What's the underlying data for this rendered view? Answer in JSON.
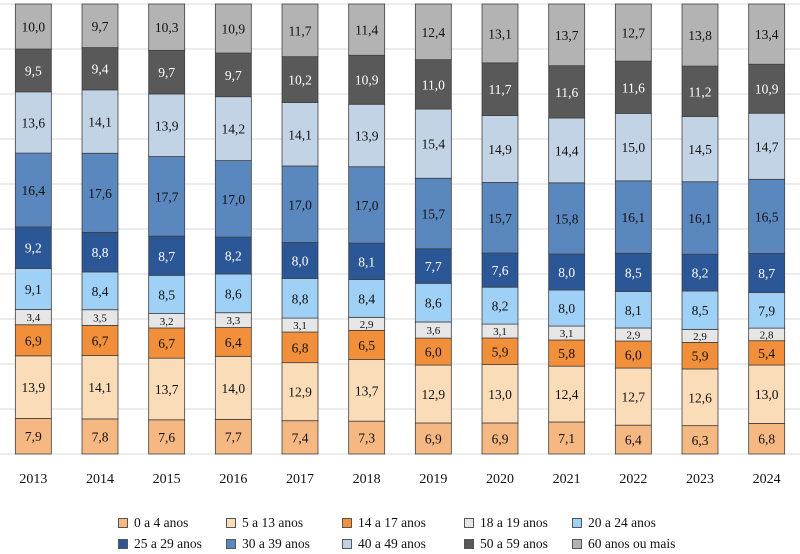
{
  "chart_data": {
    "type": "bar",
    "stacked": true,
    "categories": [
      "2013",
      "2014",
      "2015",
      "2016",
      "2017",
      "2018",
      "2019",
      "2020",
      "2021",
      "2022",
      "2023",
      "2024"
    ],
    "ylim": [
      0,
      100
    ],
    "grid": true,
    "legend_position": "bottom",
    "series": [
      {
        "name": "0 a 4 anos",
        "color": "#f6b883",
        "values": [
          7.9,
          7.8,
          7.6,
          7.7,
          7.4,
          7.3,
          6.9,
          6.9,
          7.1,
          6.4,
          6.3,
          6.8
        ],
        "labels": [
          "7,9",
          "7,8",
          "7,6",
          "7,7",
          "7,4",
          "7,3",
          "6,9",
          "6,9",
          "7,1",
          "6,4",
          "6,3",
          "6,8"
        ]
      },
      {
        "name": "5 a 13 anos",
        "color": "#fbdcb8",
        "values": [
          13.9,
          14.1,
          13.7,
          14.0,
          12.9,
          13.7,
          12.9,
          13.0,
          12.4,
          12.7,
          12.6,
          13.0
        ],
        "labels": [
          "13,9",
          "14,1",
          "13,7",
          "14,0",
          "12,9",
          "13,7",
          "12,9",
          "13,0",
          "12,4",
          "12,7",
          "12,6",
          "13,0"
        ]
      },
      {
        "name": "14 a 17 anos",
        "color": "#f28f3b",
        "values": [
          6.9,
          6.7,
          6.7,
          6.4,
          6.8,
          6.5,
          6.0,
          5.9,
          5.8,
          6.0,
          5.9,
          5.4
        ],
        "labels": [
          "6,9",
          "6,7",
          "6,7",
          "6,4",
          "6,8",
          "6,5",
          "6,0",
          "5,9",
          "5,8",
          "6,0",
          "5,9",
          "5,4"
        ]
      },
      {
        "name": "18 a 19 anos",
        "color": "#e6e6e6",
        "values": [
          3.4,
          3.5,
          3.2,
          3.3,
          3.1,
          2.9,
          3.6,
          3.1,
          3.1,
          2.9,
          2.9,
          2.8
        ],
        "labels": [
          "3,4",
          "3,5",
          "3,2",
          "3,3",
          "3,1",
          "2,9",
          "3,6",
          "3,1",
          "3,1",
          "2,9",
          "2,9",
          "2,8"
        ]
      },
      {
        "name": "20 a 24 anos",
        "color": "#9fd0f5",
        "values": [
          9.1,
          8.4,
          8.5,
          8.6,
          8.8,
          8.4,
          8.6,
          8.2,
          8.0,
          8.1,
          8.5,
          7.9
        ],
        "labels": [
          "9,1",
          "8,4",
          "8,5",
          "8,6",
          "8,8",
          "8,4",
          "8,6",
          "8,2",
          "8,0",
          "8,1",
          "8,5",
          "7,9"
        ]
      },
      {
        "name": "25 a 29 anos",
        "color": "#2b5796",
        "values": [
          9.2,
          8.8,
          8.7,
          8.2,
          8.0,
          8.1,
          7.7,
          7.6,
          8.0,
          8.5,
          8.2,
          8.7
        ],
        "labels": [
          "9,2",
          "8,8",
          "8,7",
          "8,2",
          "8,0",
          "8,1",
          "7,7",
          "7,6",
          "8,0",
          "8,5",
          "8,2",
          "8,7"
        ]
      },
      {
        "name": "30 a 39 anos",
        "color": "#5b87bf",
        "values": [
          16.4,
          17.6,
          17.7,
          17.0,
          17.0,
          17.0,
          15.7,
          15.7,
          15.8,
          16.1,
          16.1,
          16.5
        ],
        "labels": [
          "16,4",
          "17,6",
          "17,7",
          "17,0",
          "17,0",
          "17,0",
          "15,7",
          "15,7",
          "15,8",
          "16,1",
          "16,1",
          "16,5"
        ]
      },
      {
        "name": "40 a 49 anos",
        "color": "#c3d3e6",
        "values": [
          13.6,
          14.1,
          13.9,
          14.2,
          14.1,
          13.9,
          15.4,
          14.9,
          14.4,
          15.0,
          14.5,
          14.7
        ],
        "labels": [
          "13,6",
          "14,1",
          "13,9",
          "14,2",
          "14,1",
          "13,9",
          "15,4",
          "14,9",
          "14,4",
          "15,0",
          "14,5",
          "14,7"
        ]
      },
      {
        "name": "50 a 59 anos",
        "color": "#595959",
        "values": [
          9.5,
          9.4,
          9.7,
          9.7,
          10.2,
          10.9,
          11.0,
          11.7,
          11.6,
          11.6,
          11.2,
          10.9
        ],
        "labels": [
          "9,5",
          "9,4",
          "9,7",
          "9,7",
          "10,2",
          "10,9",
          "11,0",
          "11,7",
          "11,6",
          "11,6",
          "11,2",
          "10,9"
        ]
      },
      {
        "name": "60 anos ou mais",
        "color": "#b3b3b3",
        "values": [
          10.0,
          9.7,
          10.3,
          10.9,
          11.7,
          11.4,
          12.4,
          13.1,
          13.7,
          12.7,
          13.8,
          13.4
        ],
        "labels": [
          "10,0",
          "9,7",
          "10,3",
          "10,9",
          "11,7",
          "11,4",
          "12,4",
          "13,1",
          "13,7",
          "12,7",
          "13,8",
          "13,4"
        ]
      }
    ],
    "label_text_colors": [
      "#111111",
      "#111111",
      "#111111",
      "#111111",
      "#111111",
      "#ffffff",
      "#111111",
      "#111111",
      "#ffffff",
      "#111111"
    ]
  },
  "legend": {
    "rows": [
      [
        0,
        1,
        2,
        3,
        4
      ],
      [
        5,
        6,
        7,
        8,
        9
      ]
    ]
  }
}
